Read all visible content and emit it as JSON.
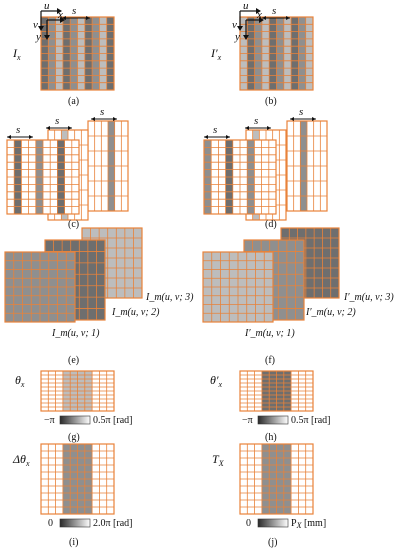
{
  "colors": {
    "grid": "#e8823a",
    "dark": "#6e6e6e",
    "mid": "#8f8f8f",
    "light": "#bdbdbd",
    "white": "#ffffff"
  },
  "labels": {
    "a": "(a)",
    "b": "(b)",
    "c": "(c)",
    "d": "(d)",
    "e": "(e)",
    "f": "(f)",
    "g": "(g)",
    "h": "(h)",
    "i": "(i)",
    "j": "(j)"
  },
  "symbols": {
    "Ix": "I",
    "Ix_sub": "x",
    "Ipx": "I′",
    "Ipx_sub": "x",
    "theta": "θ",
    "theta_sub": "x",
    "thetap": "θ′",
    "thetap_sub": "x",
    "dtheta": "Δθ",
    "dtheta_sub": "x",
    "T": "T",
    "T_sub": "X"
  },
  "axes": {
    "u": "u",
    "v": "v",
    "x": "x",
    "y": "y",
    "s": "s"
  },
  "layers_left": [
    "I_m(u, v; 1)",
    "I_m(u, v; 2)",
    "I_m(u, v; 3)"
  ],
  "layers_right": [
    "I′_m(u, v; 1)",
    "I′_m(u, v; 2)",
    "I′_m(u, v; 3)"
  ],
  "colorbars": {
    "g": {
      "min": "−π",
      "max": "0.5π [rad]"
    },
    "h": {
      "min": "−π",
      "max": "0.5π [rad]"
    },
    "i": {
      "min": "0",
      "max": "2.0π [rad]"
    },
    "j": {
      "min": "0",
      "max": "P_X [mm]"
    }
  }
}
